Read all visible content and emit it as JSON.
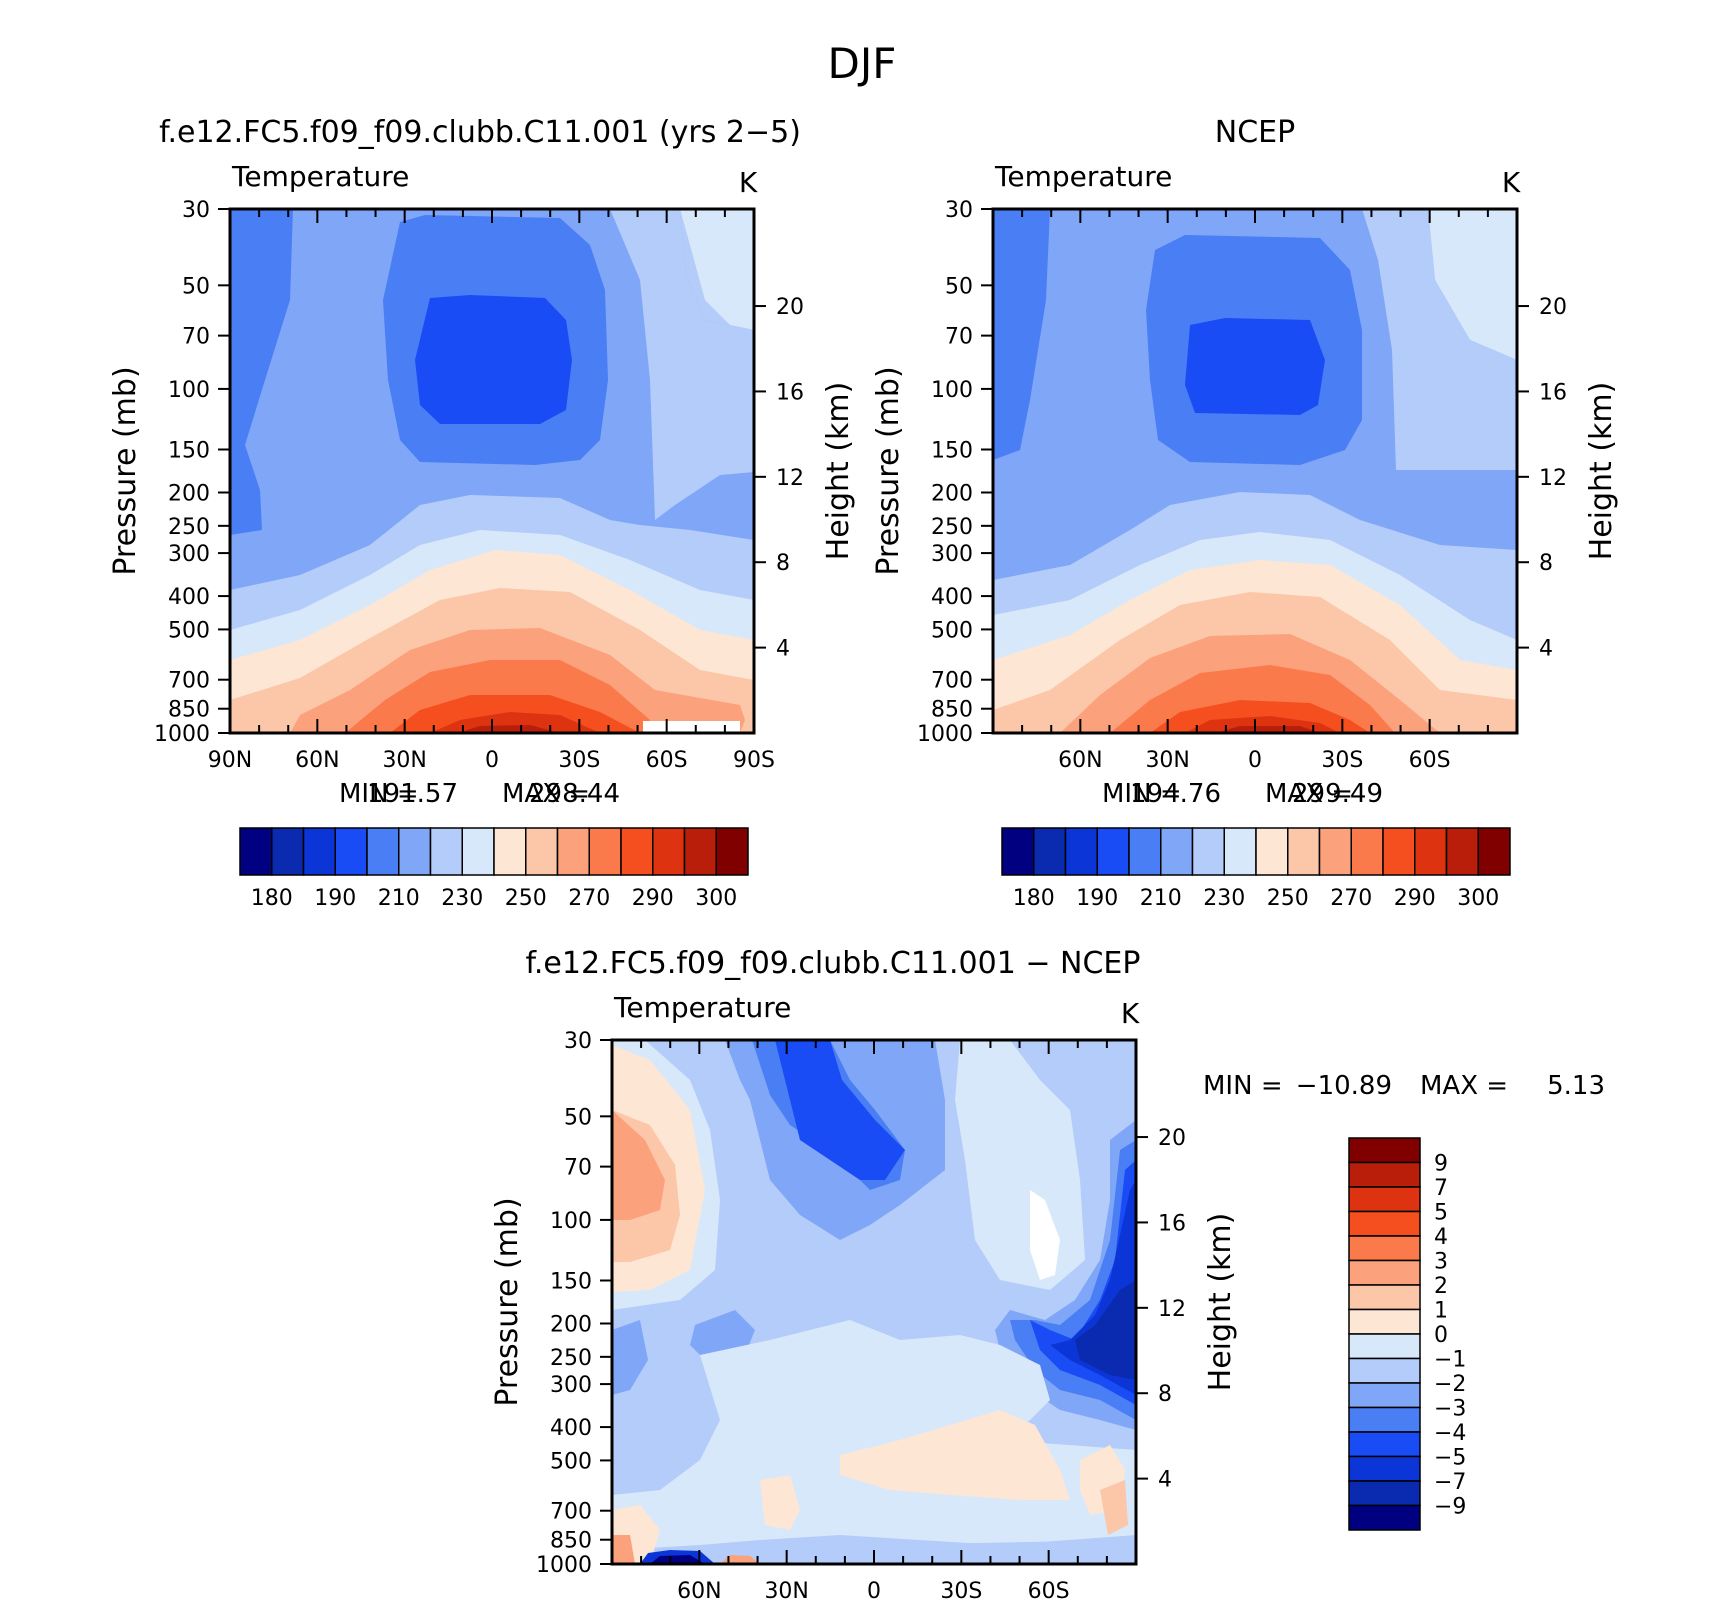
{
  "page_title": "DJF",
  "chart_data": [
    {
      "type": "heatmap",
      "name": "model",
      "title": "f.e12.FC5.f09_f09.clubb.C11.001 (yrs 2−5)",
      "subtitle": "Temperature",
      "units": "K",
      "xlabel": "",
      "ylabel": "Pressure (mb)",
      "y2label": "Height (km)",
      "x_ticks": [
        "90N",
        "60N",
        "30N",
        "0",
        "30S",
        "60S",
        "90S"
      ],
      "y_ticks": [
        "30",
        "50",
        "70",
        "100",
        "150",
        "200",
        "250",
        "300",
        "400",
        "500",
        "700",
        "850",
        "1000"
      ],
      "height_ticks": [
        "20",
        "16",
        "12",
        "8",
        "4"
      ],
      "min_label": "MIN =",
      "min": "191.57",
      "max_label": "MAX =",
      "max": "298.44",
      "colorbar_levels": [
        "180",
        "190",
        "210",
        "230",
        "250",
        "270",
        "290",
        "300"
      ]
    },
    {
      "type": "heatmap",
      "name": "ncep",
      "title": "NCEP",
      "subtitle": "Temperature",
      "units": "K",
      "xlabel": "",
      "ylabel": "Pressure (mb)",
      "y2label": "Height (km)",
      "x_ticks": [
        "60N",
        "30N",
        "0",
        "30S",
        "60S"
      ],
      "y_ticks": [
        "30",
        "50",
        "70",
        "100",
        "150",
        "200",
        "250",
        "300",
        "400",
        "500",
        "700",
        "850",
        "1000"
      ],
      "height_ticks": [
        "20",
        "16",
        "12",
        "8",
        "4"
      ],
      "min_label": "MIN =",
      "min": "194.76",
      "max_label": "MAX =",
      "max": "299.49",
      "colorbar_levels": [
        "180",
        "190",
        "210",
        "230",
        "250",
        "270",
        "290",
        "300"
      ]
    },
    {
      "type": "heatmap",
      "name": "difference",
      "title": "f.e12.FC5.f09_f09.clubb.C11.001 − NCEP",
      "subtitle": "Temperature",
      "units": "K",
      "xlabel": "",
      "ylabel": "Pressure (mb)",
      "y2label": "Height (km)",
      "x_ticks": [
        "60N",
        "30N",
        "0",
        "30S",
        "60S"
      ],
      "y_ticks": [
        "30",
        "50",
        "70",
        "100",
        "150",
        "200",
        "250",
        "300",
        "400",
        "500",
        "700",
        "850",
        "1000"
      ],
      "height_ticks": [
        "20",
        "16",
        "12",
        "8",
        "4"
      ],
      "min_label": "MIN =",
      "min": "−10.89",
      "max_label": "MAX =",
      "max": "5.13",
      "colorbar_levels": [
        "9",
        "7",
        "5",
        "4",
        "3",
        "2",
        "1",
        "0",
        "−1",
        "−2",
        "−3",
        "−4",
        "−5",
        "−7",
        "−9"
      ]
    }
  ],
  "palettes": {
    "absolute": [
      "#000080",
      "#0a2bb0",
      "#0b35d6",
      "#1a4cf5",
      "#4a7ef5",
      "#80a6f7",
      "#b4ccf9",
      "#d8e8fb",
      "#fde6d4",
      "#fcc6a8",
      "#fba27c",
      "#fb7a4c",
      "#f54f1f",
      "#dd3310",
      "#b81e09",
      "#800000"
    ],
    "difference": [
      "#800000",
      "#b81e09",
      "#dd3310",
      "#f54f1f",
      "#fb7a4c",
      "#fba27c",
      "#fcc6a8",
      "#fde6d4",
      "#d8e8fb",
      "#b4ccf9",
      "#80a6f7",
      "#4a7ef5",
      "#1a4cf5",
      "#0b35d6",
      "#0a2bb0",
      "#000080"
    ]
  }
}
